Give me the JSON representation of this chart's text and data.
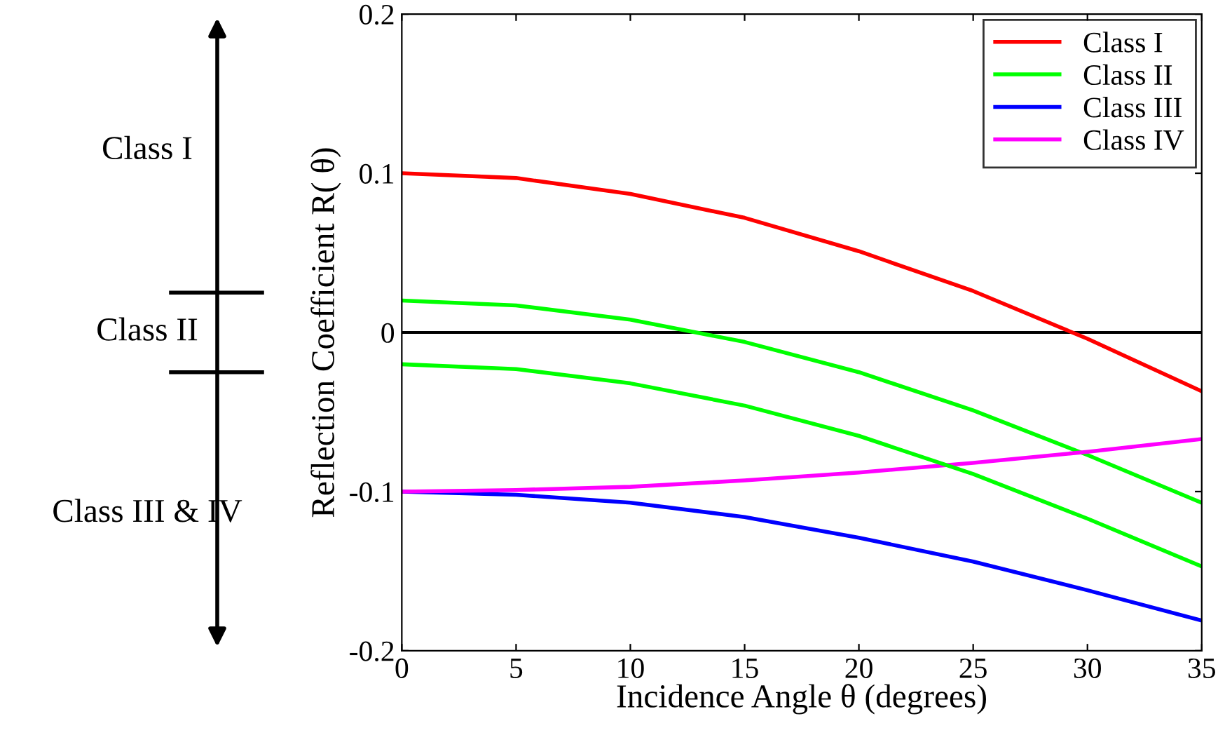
{
  "chart_data": {
    "type": "line",
    "xlabel": "Incidence Angle θ (degrees)",
    "ylabel": "Reflection Coefficient R( θ)",
    "x": [
      0,
      5,
      10,
      15,
      20,
      25,
      30,
      35
    ],
    "series": [
      {
        "name": "Class I",
        "color": "#ff0000",
        "values": [
          0.1,
          0.097,
          0.087,
          0.072,
          0.051,
          0.026,
          -0.004,
          -0.037
        ]
      },
      {
        "name": "Class II",
        "color": "#00ff00",
        "values": [
          0.02,
          0.017,
          0.008,
          -0.006,
          -0.025,
          -0.049,
          -0.077,
          -0.107
        ]
      },
      {
        "name": "Class III",
        "color": "#0000ff",
        "values": [
          -0.1,
          -0.102,
          -0.107,
          -0.116,
          -0.129,
          -0.144,
          -0.162,
          -0.181
        ]
      },
      {
        "name": "Class IV",
        "color": "#ff00ff",
        "values": [
          -0.1,
          -0.099,
          -0.097,
          -0.093,
          -0.088,
          -0.082,
          -0.075,
          -0.067
        ]
      },
      {
        "color": "#00ff00",
        "values": [
          -0.02,
          -0.023,
          -0.032,
          -0.046,
          -0.065,
          -0.089,
          -0.117,
          -0.147
        ]
      }
    ],
    "xlim": [
      0,
      35
    ],
    "xticks": [
      0,
      5,
      10,
      15,
      20,
      25,
      30,
      35
    ],
    "ylim": [
      -0.2,
      0.2
    ],
    "yticks": [
      -0.2,
      -0.1,
      0,
      0.1,
      0.2
    ],
    "ref_lines": [
      {
        "axis": "y",
        "value": 0,
        "color": "#000000"
      }
    ],
    "annotations": [
      "Class I",
      "Class II",
      "Class III & IV"
    ],
    "grid": false,
    "legend": "top right",
    "marker": "none",
    "line_style": "solid"
  }
}
